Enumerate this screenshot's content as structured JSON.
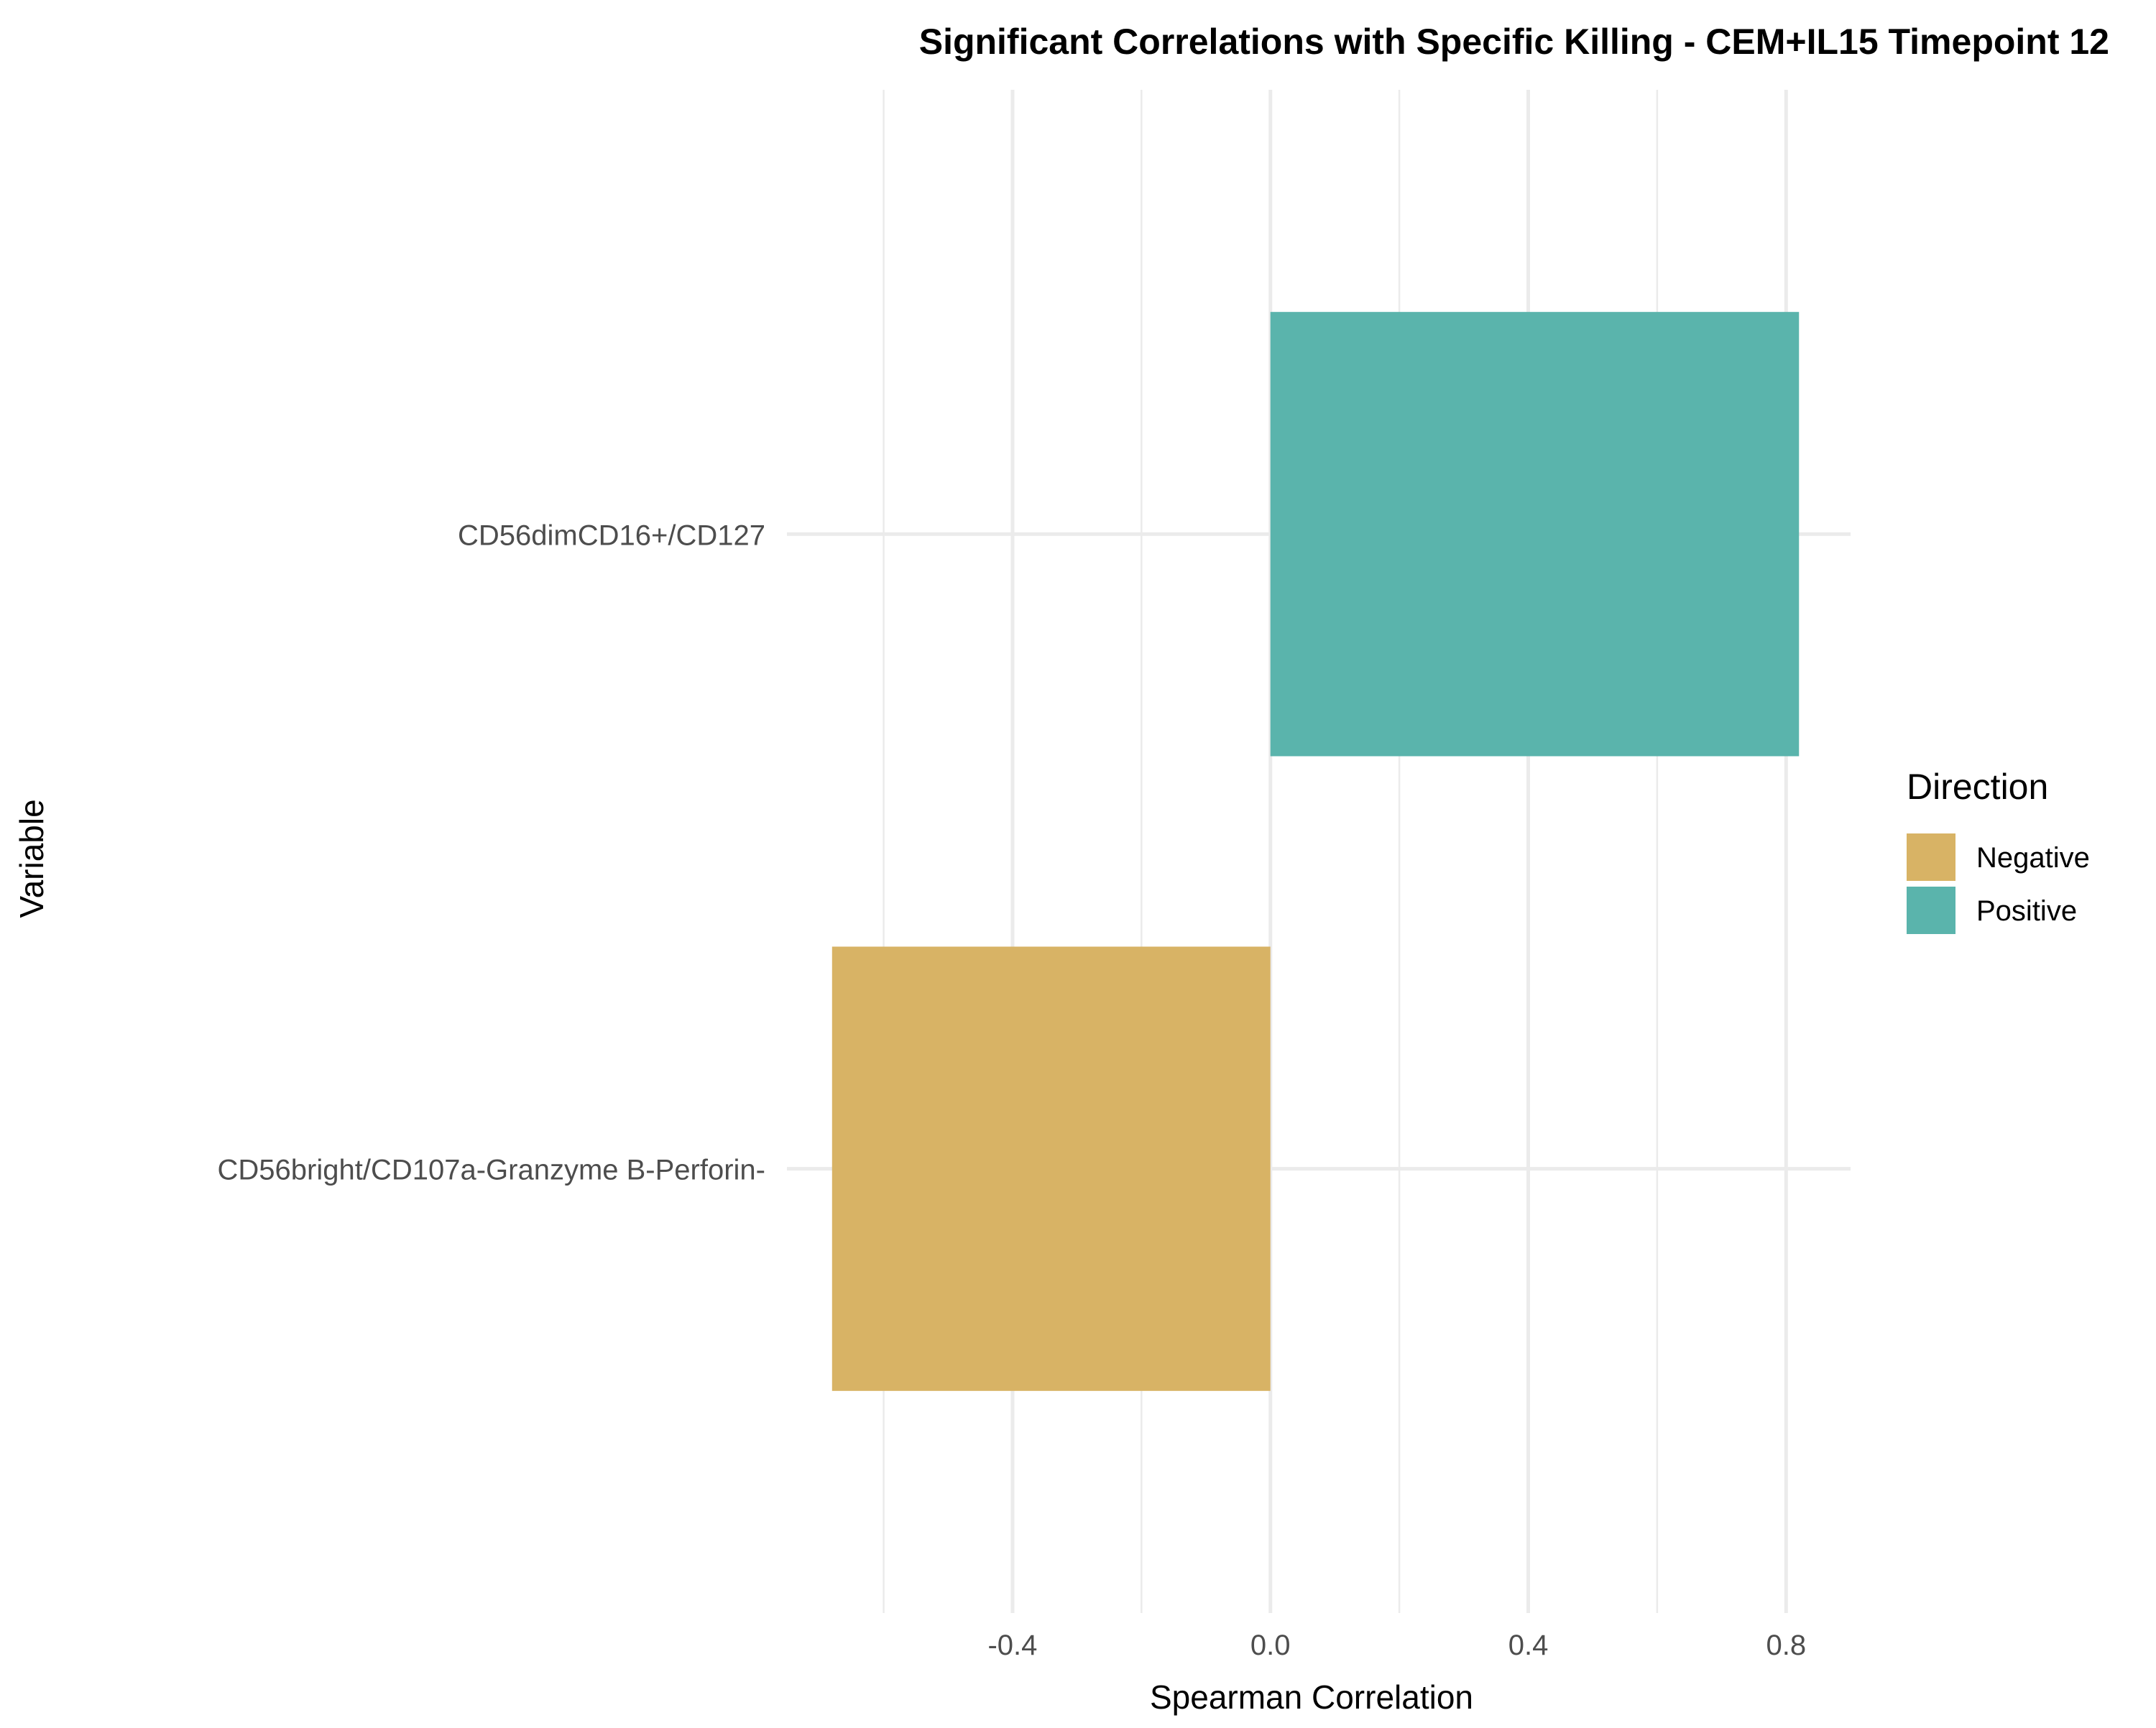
{
  "chart_data": {
    "type": "bar",
    "orientation": "horizontal",
    "title": "Significant Correlations with Specific Killing - CEM+IL15 Timepoint 12",
    "xlabel": "Spearman Correlation",
    "ylabel": "Variable",
    "categories": [
      "CD56dimCD16+/CD127",
      "CD56bright/CD107a-Granzyme B-Perforin-"
    ],
    "values": [
      0.82,
      -0.68
    ],
    "direction": [
      "Positive",
      "Negative"
    ],
    "xlim": [
      -0.75,
      0.9
    ],
    "xticks": [
      -0.4,
      0.0,
      0.4,
      0.8
    ],
    "xtick_labels": [
      "-0.4",
      "0.0",
      "0.4",
      "0.8"
    ],
    "grid": true,
    "legend": {
      "title": "Direction",
      "position": "right",
      "items": [
        {
          "label": "Negative",
          "color": "#D8B365"
        },
        {
          "label": "Positive",
          "color": "#5AB4AC"
        }
      ]
    }
  }
}
